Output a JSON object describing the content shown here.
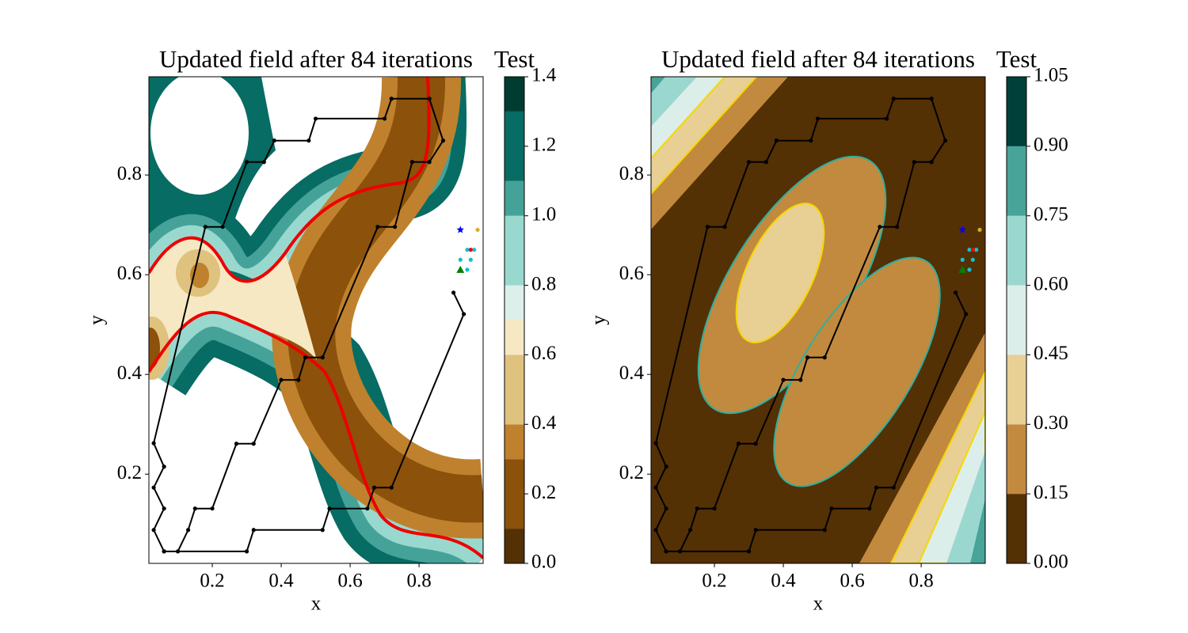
{
  "chart_data": [
    {
      "type": "contourf",
      "title": "Updated field after 84 iterations",
      "colorbar_title": "Test",
      "xlabel": "x",
      "ylabel": "y",
      "xlim": [
        0.016,
        0.986
      ],
      "ylim": [
        0.021,
        0.997
      ],
      "xticks": [
        0.2,
        0.4,
        0.6,
        0.8
      ],
      "yticks": [
        0.2,
        0.4,
        0.6,
        0.8
      ],
      "clim": [
        0,
        1.4
      ],
      "cticks": [
        {
          "value": 0,
          "label": "0.0"
        },
        0.2,
        0.4,
        0.6,
        0.8,
        {
          "value": 1,
          "label": "1.0"
        },
        1.2,
        1.4
      ],
      "levels": [
        0,
        0.1,
        0.3,
        0.4,
        0.6,
        0.7,
        0.8,
        1.0,
        1.1,
        1.3,
        1.4
      ],
      "level_colors": [
        "#543005",
        "#8c510a",
        "#bf812d",
        "#dfc27d",
        "#f6e8c3",
        "#dcefeb",
        "#99d8ce",
        "#45a298",
        "#076c63",
        "#003c30"
      ],
      "path_color": "#000000",
      "paths": [
        {
          "x": [
            0.06,
            0.3,
            0.32,
            0.52,
            0.54,
            0.65,
            0.67,
            0.72,
            0.93,
            0.9
          ],
          "y": [
            0.045,
            0.045,
            0.088,
            0.088,
            0.131,
            0.131,
            0.173,
            0.173,
            0.521,
            0.564
          ]
        },
        {
          "x": [
            0.1,
            0.13,
            0.15,
            0.2,
            0.27,
            0.32,
            0.4,
            0.45,
            0.47,
            0.52,
            0.68,
            0.73,
            0.78,
            0.83,
            0.87,
            0.83,
            0.72,
            0.7,
            0.5,
            0.48,
            0.38,
            0.35,
            0.3,
            0.23,
            0.18,
            0.03,
            0.06,
            0.03,
            0.06,
            0.03,
            0.06
          ],
          "y": [
            0.045,
            0.088,
            0.131,
            0.131,
            0.261,
            0.261,
            0.389,
            0.389,
            0.434,
            0.434,
            0.696,
            0.696,
            0.826,
            0.826,
            0.869,
            0.953,
            0.953,
            0.913,
            0.913,
            0.869,
            0.869,
            0.826,
            0.826,
            0.696,
            0.696,
            0.262,
            0.215,
            0.173,
            0.131,
            0.088,
            0.045
          ]
        }
      ],
      "markers": [
        {
          "x": 0.92,
          "y": 0.69,
          "color": "#0000ff",
          "marker": "star"
        },
        {
          "x": 0.97,
          "y": 0.69,
          "color": "#d4b02a",
          "marker": "circle"
        },
        {
          "x": 0.94,
          "y": 0.65,
          "color": "#17becf",
          "marker": "circle"
        },
        {
          "x": 0.96,
          "y": 0.65,
          "color": "#17becf",
          "marker": "circle"
        },
        {
          "x": 0.92,
          "y": 0.63,
          "color": "#17becf",
          "marker": "circle"
        },
        {
          "x": 0.95,
          "y": 0.63,
          "color": "#17becf",
          "marker": "circle"
        },
        {
          "x": 0.94,
          "y": 0.61,
          "color": "#17becf",
          "marker": "circle"
        },
        {
          "x": 0.95,
          "y": 0.65,
          "color": "#ff0000",
          "marker": "circle"
        },
        {
          "x": 0.92,
          "y": 0.61,
          "color": "#008000",
          "marker": "triangle"
        }
      ]
    },
    {
      "type": "contourf",
      "title": "Updated field after 84 iterations",
      "colorbar_title": "Test",
      "xlabel": "x",
      "ylabel": "y",
      "xlim": [
        0.016,
        0.986
      ],
      "ylim": [
        0.021,
        0.997
      ],
      "xticks": [
        0.2,
        0.4,
        0.6,
        0.8
      ],
      "yticks": [
        0.2,
        0.4,
        0.6,
        0.8
      ],
      "clim": [
        0,
        1.05
      ],
      "cticks": [
        {
          "value": 0,
          "label": "0.00"
        },
        0.15,
        {
          "value": 0.3,
          "label": "0.30"
        },
        0.45,
        {
          "value": 0.6,
          "label": "0.60"
        },
        0.75,
        {
          "value": 0.9,
          "label": "0.90"
        },
        1.05
      ],
      "levels": [
        0,
        0.15,
        0.3,
        0.45,
        0.6,
        0.75,
        0.9,
        1.05
      ],
      "level_colors": [
        "#543005",
        "#c28a3e",
        "#e8cf94",
        "#dceeea",
        "#9ad8cf",
        "#48a398",
        "#00403a"
      ],
      "path_color": "#000000",
      "paths": [
        {
          "x": [
            0.06,
            0.3,
            0.32,
            0.52,
            0.54,
            0.65,
            0.67,
            0.72,
            0.93,
            0.9
          ],
          "y": [
            0.045,
            0.045,
            0.088,
            0.088,
            0.131,
            0.131,
            0.173,
            0.173,
            0.521,
            0.564
          ]
        },
        {
          "x": [
            0.1,
            0.13,
            0.15,
            0.2,
            0.27,
            0.32,
            0.4,
            0.45,
            0.47,
            0.52,
            0.68,
            0.73,
            0.78,
            0.83,
            0.87,
            0.83,
            0.72,
            0.7,
            0.5,
            0.48,
            0.38,
            0.35,
            0.3,
            0.23,
            0.18,
            0.03,
            0.06,
            0.03,
            0.06,
            0.03,
            0.06
          ],
          "y": [
            0.045,
            0.088,
            0.131,
            0.131,
            0.261,
            0.261,
            0.389,
            0.389,
            0.434,
            0.434,
            0.696,
            0.696,
            0.826,
            0.826,
            0.869,
            0.953,
            0.953,
            0.913,
            0.913,
            0.869,
            0.869,
            0.826,
            0.826,
            0.696,
            0.696,
            0.262,
            0.215,
            0.173,
            0.131,
            0.088,
            0.045
          ]
        }
      ],
      "markers": [
        {
          "x": 0.92,
          "y": 0.69,
          "color": "#0000ff",
          "marker": "star"
        },
        {
          "x": 0.97,
          "y": 0.69,
          "color": "#d4b02a",
          "marker": "circle"
        },
        {
          "x": 0.94,
          "y": 0.65,
          "color": "#17becf",
          "marker": "circle"
        },
        {
          "x": 0.96,
          "y": 0.65,
          "color": "#17becf",
          "marker": "circle"
        },
        {
          "x": 0.92,
          "y": 0.63,
          "color": "#17becf",
          "marker": "circle"
        },
        {
          "x": 0.95,
          "y": 0.63,
          "color": "#17becf",
          "marker": "circle"
        },
        {
          "x": 0.94,
          "y": 0.61,
          "color": "#17becf",
          "marker": "circle"
        },
        {
          "x": 0.95,
          "y": 0.65,
          "color": "#ff0000",
          "marker": "circle"
        },
        {
          "x": 0.92,
          "y": 0.61,
          "color": "#008000",
          "marker": "triangle"
        }
      ]
    }
  ]
}
